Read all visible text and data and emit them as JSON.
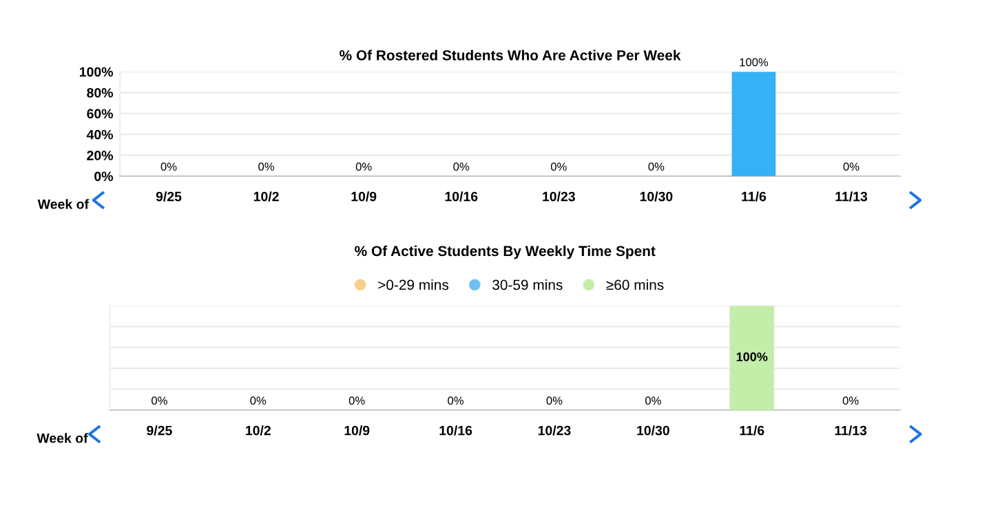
{
  "chart_data": [
    {
      "type": "bar",
      "title": "% Of Rostered Students Who Are Active Per Week",
      "xlabel": "Week of",
      "categories": [
        "9/25",
        "10/2",
        "10/9",
        "10/16",
        "10/23",
        "10/30",
        "11/6",
        "11/13"
      ],
      "values": [
        0,
        0,
        0,
        0,
        0,
        0,
        100,
        0
      ],
      "color": "#35b1f5",
      "value_labels": [
        "0%",
        "0%",
        "0%",
        "0%",
        "0%",
        "0%",
        "100%",
        "0%"
      ],
      "ylim": [
        0,
        100
      ],
      "yticks": [
        {
          "value": 0,
          "label": "0%"
        },
        {
          "value": 20,
          "label": "20%"
        },
        {
          "value": 40,
          "label": "40%"
        },
        {
          "value": 60,
          "label": "60%"
        },
        {
          "value": 80,
          "label": "80%"
        },
        {
          "value": 100,
          "label": "100%"
        }
      ],
      "grid": "y",
      "legend": false
    },
    {
      "type": "bar",
      "title": "% Of Active Students By Weekly Time Spent",
      "xlabel": "Week of",
      "stacked": true,
      "categories": [
        "9/25",
        "10/2",
        "10/9",
        "10/16",
        "10/23",
        "10/30",
        "11/6",
        "11/13"
      ],
      "series": [
        {
          "name": ">0-29 mins",
          "color": "#f9cf8f",
          "values": [
            0,
            0,
            0,
            0,
            0,
            0,
            0,
            0
          ]
        },
        {
          "name": "30-59 mins",
          "color": "#6fc0f0",
          "values": [
            0,
            0,
            0,
            0,
            0,
            0,
            0,
            0
          ]
        },
        {
          "name": "≥60 mins",
          "color": "#c2eeaa",
          "values": [
            0,
            0,
            0,
            0,
            0,
            0,
            100,
            0
          ],
          "value_labels": [
            "0%",
            "0%",
            "0%",
            "0%",
            "0%",
            "0%",
            "100%",
            "0%"
          ]
        }
      ],
      "ylim": [
        0,
        100
      ],
      "yticks": [
        {
          "value": 0,
          "label": null
        },
        {
          "value": 20,
          "label": null
        },
        {
          "value": 40,
          "label": null
        },
        {
          "value": 60,
          "label": null
        },
        {
          "value": 80,
          "label": null
        },
        {
          "value": 100,
          "label": null
        }
      ],
      "tick_labels": "x",
      "grid": "y",
      "legend": "top",
      "marker": "circle"
    }
  ]
}
